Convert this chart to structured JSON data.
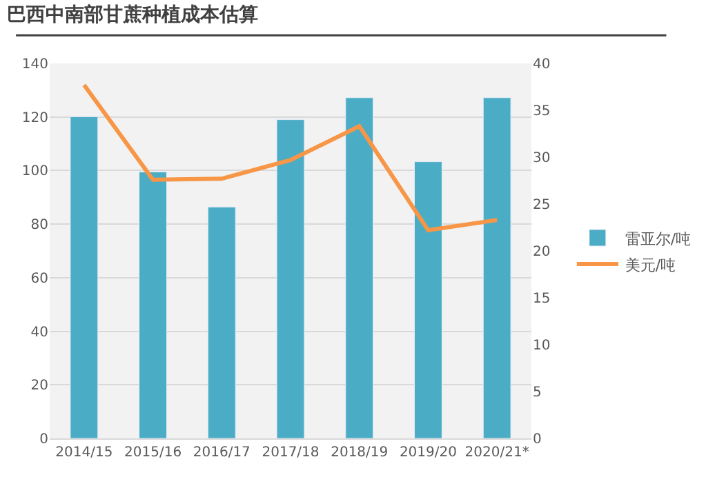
{
  "chart_data": {
    "type": "bar",
    "title": "巴西中南部甘蔗种植成本估算",
    "categories": [
      "2014/15",
      "2015/16",
      "2016/17",
      "2017/18",
      "2018/19",
      "2019/20",
      "2020/21*"
    ],
    "series": [
      {
        "name": "雷亚尔/吨",
        "color": "#4bacc6",
        "values": [
          120.1,
          99.5,
          86.4,
          119.0,
          127.2,
          103.3,
          127.2
        ]
      },
      {
        "name": "美元/吨",
        "type": "line",
        "axis": "y2",
        "color": "#f79646",
        "marker": "none",
        "line_style": "solid",
        "values": [
          37.7,
          27.6,
          27.7,
          29.7,
          33.3,
          22.2,
          23.3
        ]
      }
    ],
    "ylim": [
      0,
      140
    ],
    "yticks": [
      0,
      20,
      40,
      60,
      80,
      100,
      120,
      140
    ],
    "y2lim": [
      0,
      40
    ],
    "y2ticks": [
      0,
      5,
      10,
      15,
      20,
      25,
      30,
      35,
      40
    ],
    "grid": "y",
    "legend": "right"
  }
}
